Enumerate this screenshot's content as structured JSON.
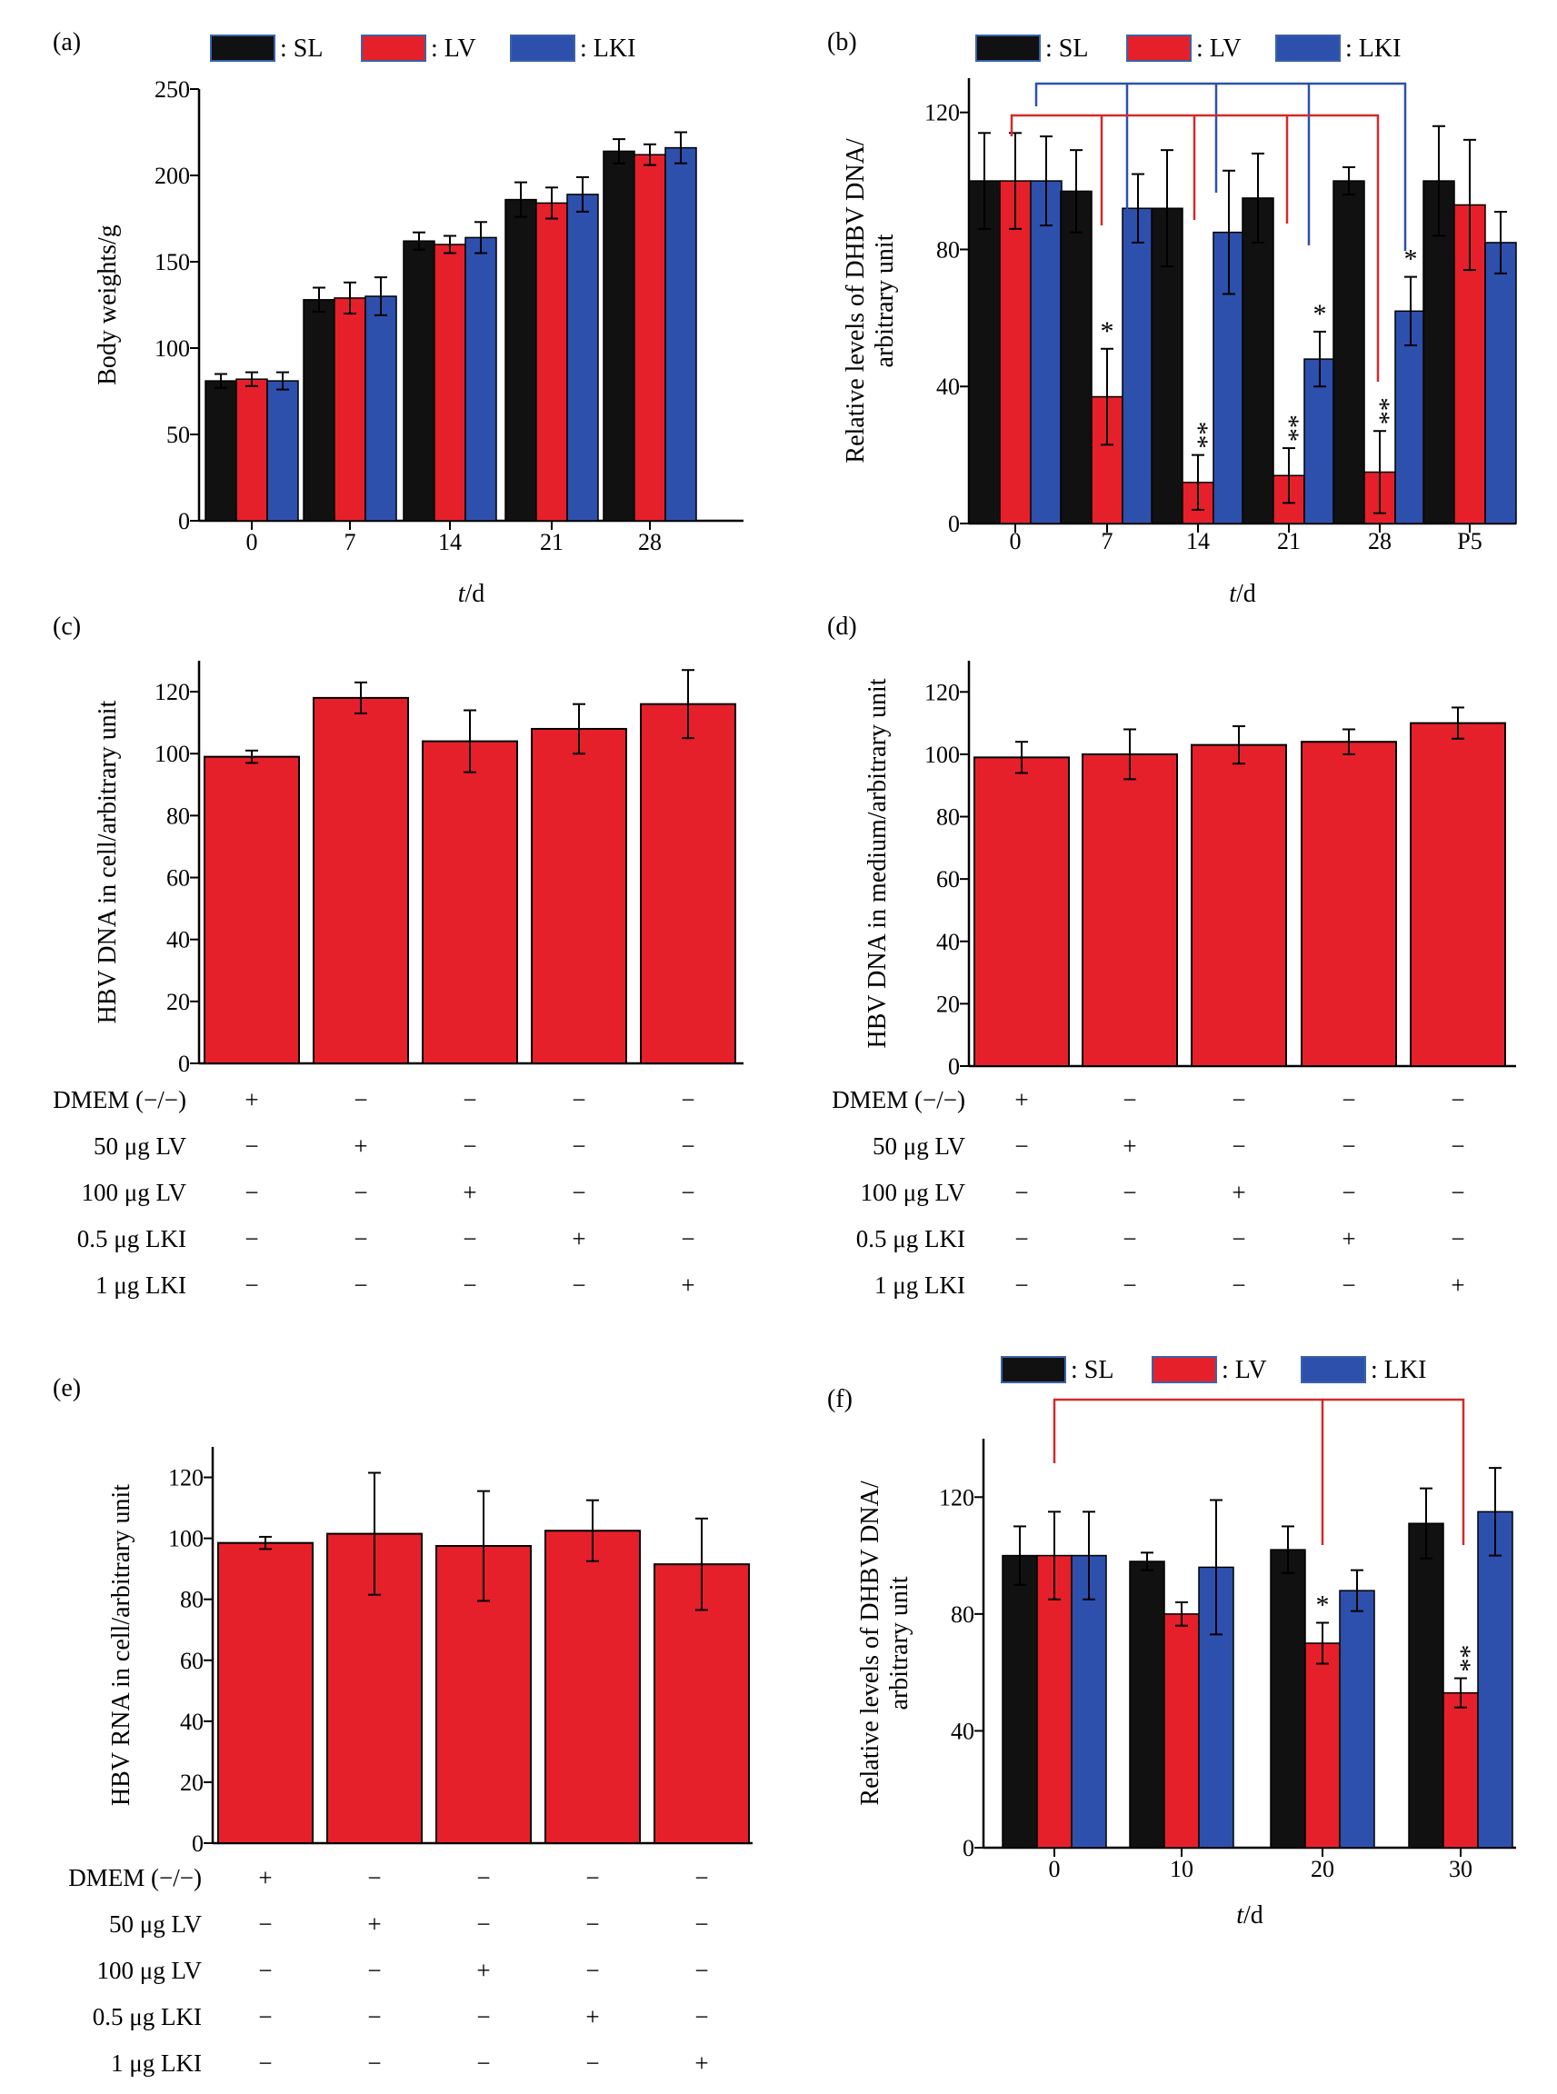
{
  "colors": {
    "SL": "#111111",
    "LV": "#e5202a",
    "LKI": "#2e50ad",
    "bracket_red": "#d42a2a",
    "bracket_blue": "#2e50ad"
  },
  "legend_labels": [
    ": SL",
    ": LV",
    ": LKI"
  ],
  "chart_data": [
    {
      "panel": "(a)",
      "type": "bar",
      "xlabel_italic": "t",
      "xlabel_rest": "/d",
      "ylabel": "Body weights/g",
      "ylim": [
        0,
        250
      ],
      "yticks": [
        0,
        50,
        100,
        150,
        200,
        250
      ],
      "categories": [
        "0",
        "7",
        "14",
        "21",
        "28"
      ],
      "series": [
        {
          "name": "SL",
          "values": [
            81,
            128,
            162,
            186,
            214
          ],
          "errors": [
            4,
            7,
            5,
            10,
            7
          ]
        },
        {
          "name": "LV",
          "values": [
            82,
            129,
            160,
            184,
            212
          ],
          "errors": [
            4,
            9,
            5,
            9,
            6
          ]
        },
        {
          "name": "LKI",
          "values": [
            81,
            130,
            164,
            189,
            216
          ],
          "errors": [
            5,
            11,
            9,
            10,
            9
          ]
        }
      ],
      "legend": "top"
    },
    {
      "panel": "(b)",
      "type": "bar",
      "xlabel_italic": "t",
      "xlabel_rest": "/d",
      "ylabel": [
        "Relative levels of  DHBV DNA/",
        "arbitrary unit"
      ],
      "ylim": [
        0,
        130
      ],
      "yticks": [
        0,
        40,
        80,
        120
      ],
      "categories": [
        "0",
        "7",
        "14",
        "21",
        "28",
        "P5"
      ],
      "series": [
        {
          "name": "SL",
          "values": [
            100,
            97,
            92,
            95,
            100,
            100
          ],
          "errors": [
            14,
            12,
            17,
            13,
            4,
            16
          ]
        },
        {
          "name": "LV",
          "values": [
            100,
            37,
            12,
            14,
            15,
            93
          ],
          "errors": [
            14,
            14,
            8,
            8,
            12,
            19
          ]
        },
        {
          "name": "LKI",
          "values": [
            100,
            92,
            85,
            48,
            62,
            82
          ],
          "errors": [
            13,
            10,
            18,
            8,
            10,
            9
          ]
        }
      ],
      "significance": [
        {
          "category": "7",
          "series": "LV",
          "mark": "*"
        },
        {
          "category": "14",
          "series": "LV",
          "mark": "**"
        },
        {
          "category": "21",
          "series": "LV",
          "mark": "**"
        },
        {
          "category": "21",
          "series": "LKI",
          "mark": "*"
        },
        {
          "category": "28",
          "series": "LV",
          "mark": "**"
        },
        {
          "category": "28",
          "series": "LKI",
          "mark": "*"
        }
      ],
      "legend": "top"
    },
    {
      "panel": "(c)",
      "type": "bar",
      "ylabel": "HBV DNA in cell/arbitrary unit",
      "ylim": [
        0,
        130
      ],
      "yticks": [
        0,
        20,
        40,
        60,
        80,
        100,
        120
      ],
      "values": [
        99,
        118,
        104,
        108,
        116
      ],
      "errors": [
        2,
        5,
        10,
        8,
        11
      ],
      "table_rows": [
        {
          "label": "DMEM (−/−)",
          "marks": [
            "+",
            "−",
            "−",
            "−",
            "−"
          ]
        },
        {
          "label": "50 μg LV",
          "marks": [
            "−",
            "+",
            "−",
            "−",
            "−"
          ]
        },
        {
          "label": "100 μg LV",
          "marks": [
            "−",
            "−",
            "+",
            "−",
            "−"
          ]
        },
        {
          "label": "0.5 μg LKI",
          "marks": [
            "−",
            "−",
            "−",
            "+",
            "−"
          ]
        },
        {
          "label": "1 μg LKI",
          "marks": [
            "−",
            "−",
            "−",
            "−",
            "+"
          ]
        }
      ]
    },
    {
      "panel": "(d)",
      "type": "bar",
      "ylabel": "HBV DNA in medium/arbitrary unit",
      "ylim": [
        0,
        130
      ],
      "yticks": [
        0,
        20,
        40,
        60,
        80,
        100,
        120
      ],
      "values": [
        99,
        100,
        103,
        104,
        110
      ],
      "errors": [
        5,
        8,
        6,
        4,
        5
      ],
      "table_rows": [
        {
          "label": "DMEM (−/−)",
          "marks": [
            "+",
            "−",
            "−",
            "−",
            "−"
          ]
        },
        {
          "label": "50 μg LV",
          "marks": [
            "−",
            "+",
            "−",
            "−",
            "−"
          ]
        },
        {
          "label": "100 μg LV",
          "marks": [
            "−",
            "−",
            "+",
            "−",
            "−"
          ]
        },
        {
          "label": "0.5 μg LKI",
          "marks": [
            "−",
            "−",
            "−",
            "+",
            "−"
          ]
        },
        {
          "label": "1 μg LKI",
          "marks": [
            "−",
            "−",
            "−",
            "−",
            "+"
          ]
        }
      ]
    },
    {
      "panel": "(e)",
      "type": "bar",
      "ylabel": "HBV RNA in cell/arbitrary unit",
      "ylim": [
        0,
        130
      ],
      "yticks": [
        0,
        20,
        40,
        60,
        80,
        100,
        120
      ],
      "values": [
        98.5,
        101.5,
        97.5,
        102.5,
        91.5
      ],
      "errors": [
        2,
        20,
        18,
        10,
        15
      ],
      "table_rows": [
        {
          "label": "DMEM (−/−)",
          "marks": [
            "+",
            "−",
            "−",
            "−",
            "−"
          ]
        },
        {
          "label": "50 μg LV",
          "marks": [
            "−",
            "+",
            "−",
            "−",
            "−"
          ]
        },
        {
          "label": "100 μg LV",
          "marks": [
            "−",
            "−",
            "+",
            "−",
            "−"
          ]
        },
        {
          "label": "0.5 μg LKI",
          "marks": [
            "−",
            "−",
            "−",
            "+",
            "−"
          ]
        },
        {
          "label": "1 μg LKI",
          "marks": [
            "−",
            "−",
            "−",
            "−",
            "+"
          ]
        }
      ]
    },
    {
      "panel": "(f)",
      "type": "bar",
      "xlabel_italic": "t",
      "xlabel_rest": "/d",
      "ylabel": [
        "Relative levels of DHBV DNA/",
        "arbitrary unit"
      ],
      "ylim": [
        0,
        140
      ],
      "yticks": [
        0,
        40,
        80,
        120
      ],
      "categories": [
        "0",
        "10",
        "20",
        "30"
      ],
      "series": [
        {
          "name": "SL",
          "values": [
            100,
            98,
            102,
            111
          ],
          "errors": [
            10,
            3,
            8,
            12
          ]
        },
        {
          "name": "LV",
          "values": [
            100,
            80,
            70,
            53
          ],
          "errors": [
            15,
            4,
            7,
            5
          ]
        },
        {
          "name": "LKI",
          "values": [
            100,
            96,
            88,
            115
          ],
          "errors": [
            15,
            23,
            7,
            15
          ]
        }
      ],
      "significance": [
        {
          "category": "20",
          "series": "LV",
          "mark": "*"
        },
        {
          "category": "30",
          "series": "LV",
          "mark": "**"
        }
      ],
      "legend": "top"
    }
  ]
}
